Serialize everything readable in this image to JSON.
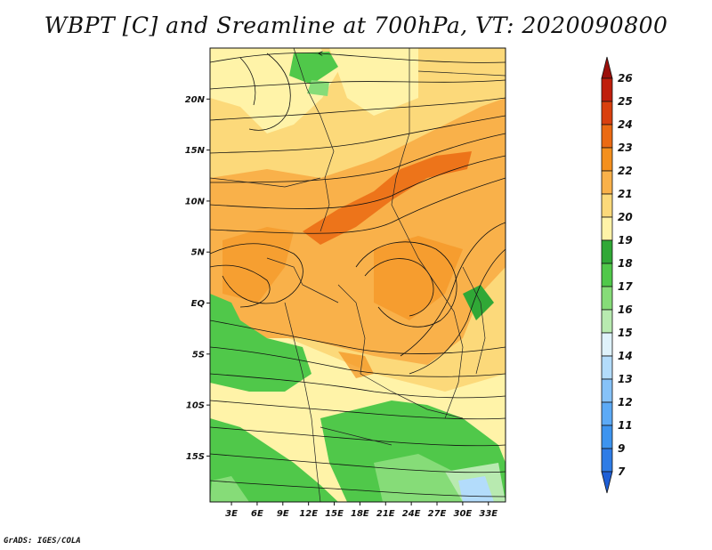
{
  "title": "WBPT [C] and Sreamline at 700hPa, VT: 2020090800",
  "credit": "GrADS: IGES/COLA",
  "chart_data": {
    "type": "heatmap",
    "variable": "Wet-bulb potential temperature with streamlines",
    "level": "700hPa",
    "valid_time": "2020090800",
    "x_ticks": [
      "3E",
      "6E",
      "9E",
      "12E",
      "15E",
      "18E",
      "21E",
      "24E",
      "27E",
      "30E",
      "33E"
    ],
    "y_ticks": [
      "20N",
      "15N",
      "10N",
      "5N",
      "EQ",
      "5S",
      "10S",
      "15S"
    ],
    "x_tick_values": [
      3,
      6,
      9,
      12,
      15,
      18,
      21,
      24,
      27,
      30,
      33
    ],
    "y_tick_values": [
      20,
      15,
      10,
      5,
      0,
      -5,
      -10,
      -15
    ],
    "xlim": [
      0.5,
      35
    ],
    "ylim": [
      -19.5,
      25
    ],
    "colorbar": {
      "levels": [
        "7",
        "9",
        "11",
        "12",
        "13",
        "14",
        "15",
        "16",
        "17",
        "18",
        "19",
        "20",
        "21",
        "22",
        "23",
        "24",
        "25",
        "26"
      ],
      "colors": [
        "#1e5fd6",
        "#2e7ce6",
        "#3d94ef",
        "#5caaf6",
        "#86c2f8",
        "#b3dcfb",
        "#dff2fb",
        "#b8eab0",
        "#86dc78",
        "#50c84a",
        "#30a836",
        "#fff3a8",
        "#fcd97a",
        "#f9b14a",
        "#f4901e",
        "#eb6a12",
        "#d9400e",
        "#bf1f0c",
        "#9b0f0a"
      ]
    }
  }
}
